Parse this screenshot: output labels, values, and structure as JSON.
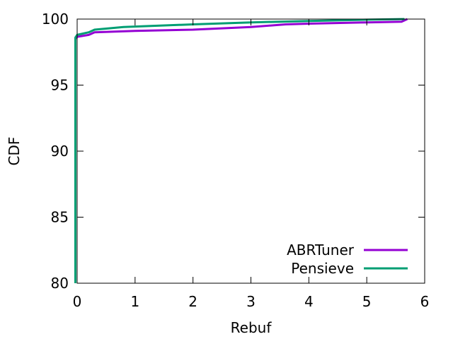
{
  "chart_data": {
    "type": "line",
    "xlabel": "Rebuf",
    "ylabel": "CDF",
    "xlim": [
      0,
      6
    ],
    "ylim": [
      80,
      100
    ],
    "x_ticks": [
      0,
      1,
      2,
      3,
      4,
      5,
      6
    ],
    "x_tick_labels": [
      "0",
      "1",
      "2",
      "3",
      "4",
      "5",
      "6"
    ],
    "y_ticks": [
      80,
      85,
      90,
      95,
      100
    ],
    "y_tick_labels": [
      "80",
      "85",
      "90",
      "95",
      "100"
    ],
    "grid": false,
    "legend_position": "bottom-right",
    "series": [
      {
        "name": "ABRTuner",
        "color": "#9400d3",
        "x": [
          -0.03,
          -0.03,
          0.0,
          0.2,
          0.3,
          1.0,
          2.0,
          3.0,
          3.6,
          4.0,
          5.0,
          5.6,
          5.7
        ],
        "y": [
          80,
          98.5,
          98.65,
          98.8,
          99.0,
          99.1,
          99.2,
          99.4,
          99.6,
          99.65,
          99.75,
          99.8,
          100
        ]
      },
      {
        "name": "Pensieve",
        "color": "#009e73",
        "x": [
          -0.03,
          -0.03,
          0.0,
          0.2,
          0.3,
          0.8,
          2.0,
          3.0,
          4.0,
          5.0,
          5.65
        ],
        "y": [
          80,
          98.6,
          98.8,
          99.0,
          99.2,
          99.4,
          99.6,
          99.75,
          99.85,
          99.95,
          100
        ]
      }
    ]
  }
}
